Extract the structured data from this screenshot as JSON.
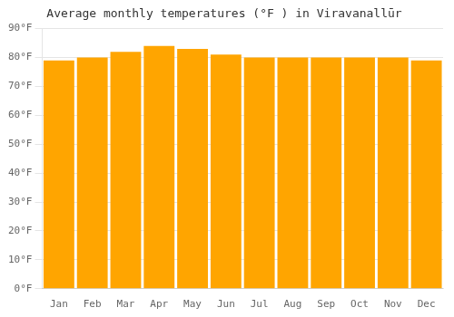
{
  "chart_data": {
    "type": "bar",
    "title": "Average monthly temperatures (°F ) in Viravanallūr",
    "categories": [
      "Jan",
      "Feb",
      "Mar",
      "Apr",
      "May",
      "Jun",
      "Jul",
      "Aug",
      "Sep",
      "Oct",
      "Nov",
      "Dec"
    ],
    "values": [
      79,
      80,
      82,
      84,
      83,
      81,
      80,
      80,
      80,
      80,
      80,
      79
    ],
    "color": "#FFA500",
    "ylim": [
      0,
      90
    ],
    "yticks": [
      {
        "value": 0,
        "label": "0°F"
      },
      {
        "value": 10,
        "label": "10°F"
      },
      {
        "value": 20,
        "label": "20°F"
      },
      {
        "value": 30,
        "label": "30°F"
      },
      {
        "value": 40,
        "label": "40°F"
      },
      {
        "value": 50,
        "label": "50°F"
      },
      {
        "value": 60,
        "label": "60°F"
      },
      {
        "value": 70,
        "label": "70°F"
      },
      {
        "value": 80,
        "label": "80°F"
      },
      {
        "value": 90,
        "label": "90°F"
      }
    ],
    "grid": true
  }
}
